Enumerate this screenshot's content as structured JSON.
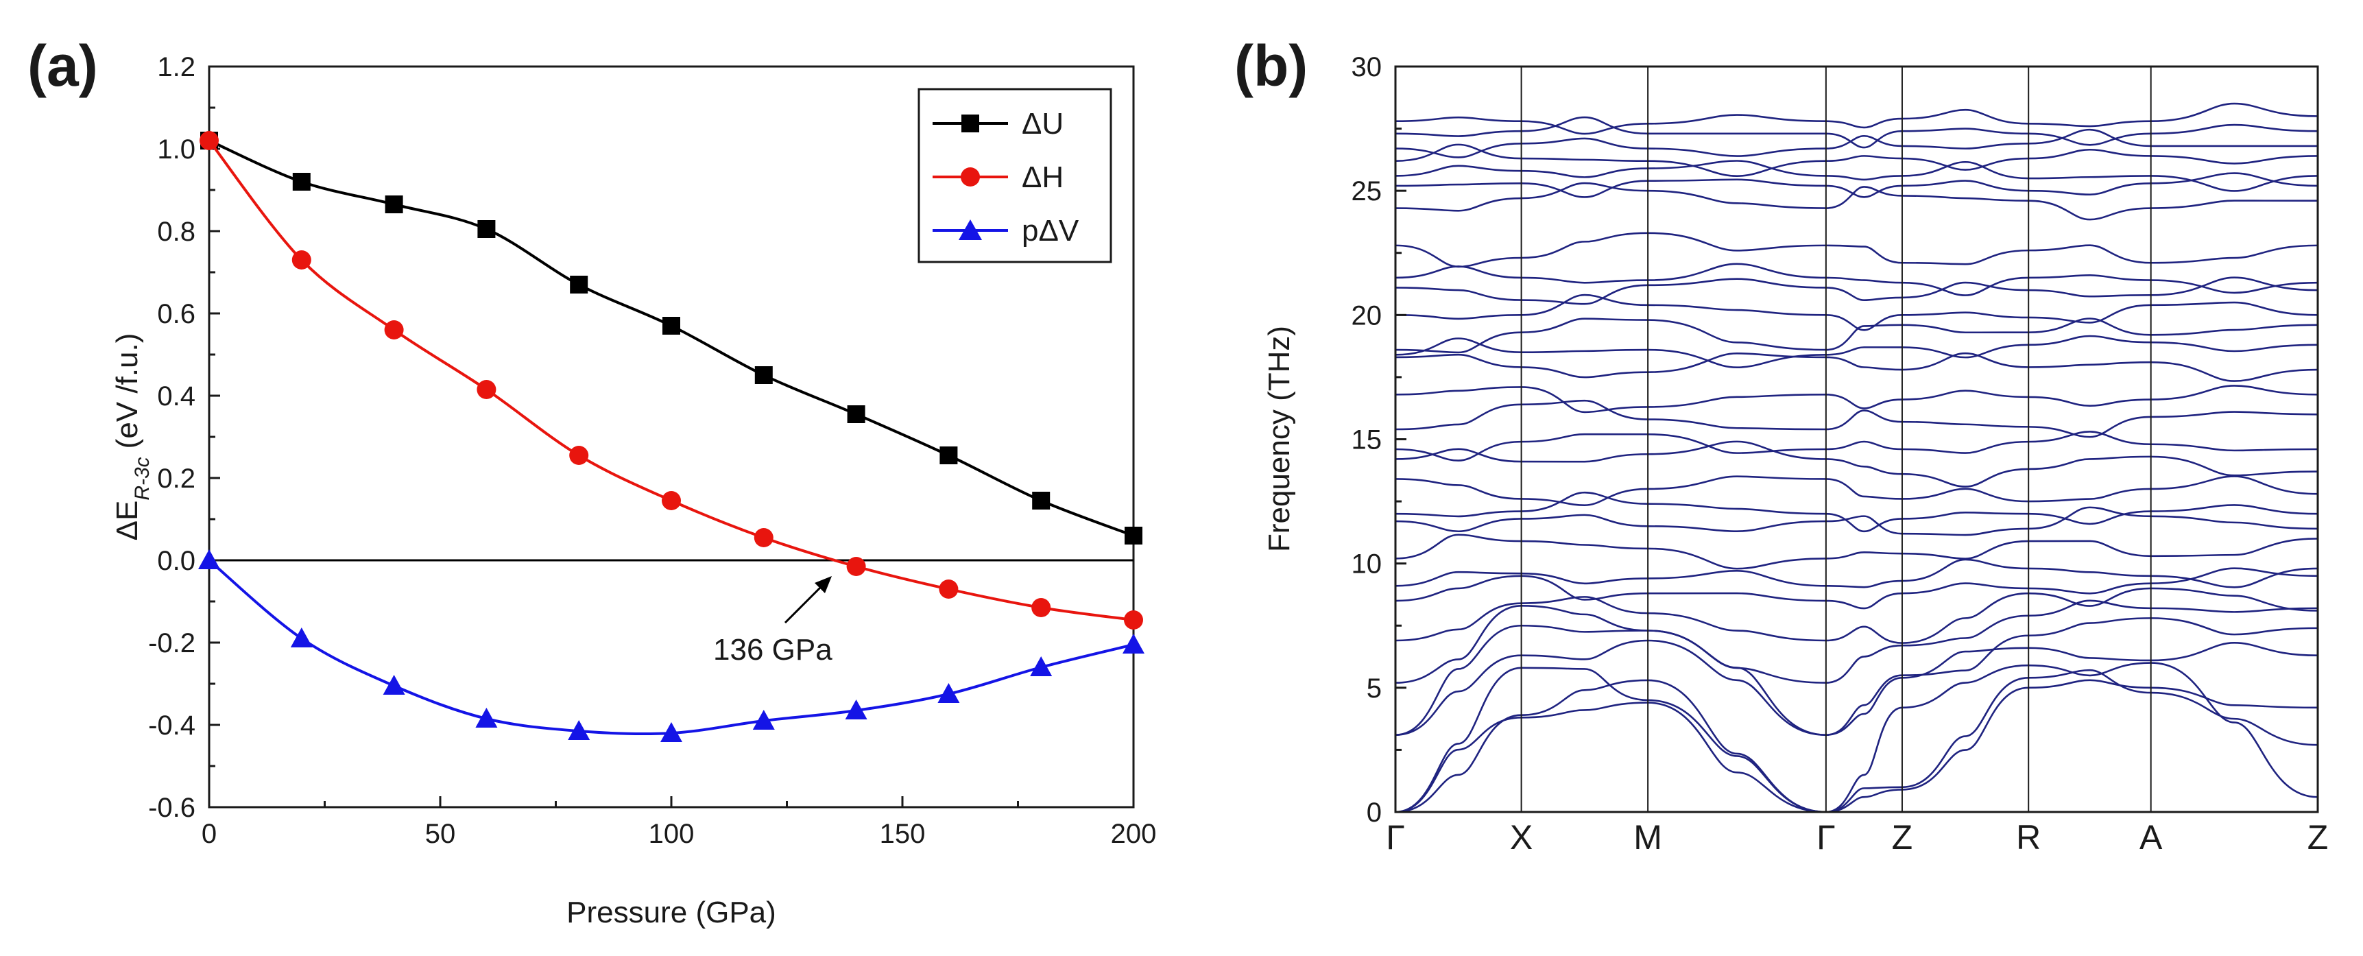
{
  "chart_data": [
    {
      "panel": "(a)",
      "type": "line",
      "xlabel": "Pressure (GPa)",
      "ylabel": {
        "main": "ΔE",
        "subscript": "R-3c",
        "units": "(eV /f.u.)"
      },
      "xlim": [
        0,
        200
      ],
      "ylim": [
        -0.6,
        1.2
      ],
      "xticks": [
        0,
        50,
        100,
        150,
        200
      ],
      "xtick_labels": [
        "0",
        "50",
        "100",
        "150",
        "200"
      ],
      "yticks": [
        -0.6,
        -0.4,
        -0.2,
        0.0,
        0.2,
        0.4,
        0.6,
        0.8,
        1.0,
        1.2
      ],
      "ytick_labels": [
        "-0.6",
        "-0.4",
        "-0.2",
        "0.0",
        "0.2",
        "0.4",
        "0.6",
        "0.8",
        "1.0",
        "1.2"
      ],
      "legend_position": "top-right",
      "series": [
        {
          "name": "ΔU",
          "color": "#000000",
          "marker": "square",
          "x": [
            0,
            20,
            40,
            60,
            80,
            100,
            120,
            140,
            160,
            180,
            200
          ],
          "y": [
            1.02,
            0.92,
            0.865,
            0.805,
            0.67,
            0.57,
            0.45,
            0.355,
            0.255,
            0.145,
            0.06
          ]
        },
        {
          "name": "ΔH",
          "color": "#e8150e",
          "marker": "circle",
          "x": [
            0,
            20,
            40,
            60,
            80,
            100,
            120,
            140,
            160,
            180,
            200
          ],
          "y": [
            1.02,
            0.73,
            0.56,
            0.415,
            0.255,
            0.145,
            0.055,
            -0.015,
            -0.07,
            -0.115,
            -0.145
          ]
        },
        {
          "name": "pΔV",
          "color": "#1414e6",
          "marker": "triangle",
          "x": [
            0,
            20,
            40,
            60,
            80,
            100,
            120,
            140,
            160,
            180,
            200
          ],
          "y": [
            0.0,
            -0.19,
            -0.305,
            -0.385,
            -0.415,
            -0.42,
            -0.39,
            -0.365,
            -0.325,
            -0.26,
            -0.205
          ]
        }
      ],
      "reference_line": {
        "y": 0.0
      },
      "annotation": {
        "text": "136 GPa",
        "x": 136,
        "y": 0.0
      }
    },
    {
      "panel": "(b)",
      "type": "line",
      "ylabel": "Frequency (THz)",
      "ylim": [
        0,
        30
      ],
      "yticks": [
        0,
        5,
        10,
        15,
        20,
        25,
        30
      ],
      "ytick_labels": [
        "0",
        "5",
        "10",
        "15",
        "20",
        "25",
        "30"
      ],
      "line_color": "#1f2380",
      "kpath": [
        "Γ",
        "X",
        "M",
        "Γ",
        "Z",
        "R",
        "A",
        "Z"
      ],
      "kpath_positions": [
        0,
        0.1365,
        0.2737,
        0.4668,
        0.5494,
        0.6864,
        0.8191,
        1.0
      ],
      "band_count": 42,
      "bands_shown": [
        [
          0,
          3.8,
          4.4,
          0,
          0.9,
          5.0,
          5.0,
          4.2
        ],
        [
          0,
          3.9,
          5.3,
          0,
          1.0,
          5.4,
          4.8,
          2.7
        ],
        [
          0,
          5.8,
          4.5,
          0,
          4.2,
          5.9,
          6.0,
          0.6
        ],
        [
          3.1,
          6.3,
          6.9,
          3.1,
          5.4,
          6.6,
          6.1,
          6.3
        ],
        [
          3.1,
          7.5,
          7.3,
          3.1,
          5.5,
          7.1,
          7.8,
          7.4
        ],
        [
          5.2,
          8.3,
          7.3,
          5.2,
          6.7,
          7.9,
          8.2,
          8.2
        ],
        [
          6.9,
          8.4,
          8.0,
          6.9,
          6.8,
          8.8,
          9.0,
          8.1
        ],
        [
          8.5,
          9.5,
          8.8,
          8.5,
          8.8,
          9.0,
          9.2,
          9.5
        ],
        [
          9.1,
          9.6,
          9.4,
          9.1,
          9.3,
          9.8,
          9.5,
          9.8
        ],
        [
          10.2,
          10.9,
          10.6,
          10.2,
          10.4,
          10.9,
          10.3,
          11.0
        ],
        [
          11.7,
          11.8,
          11.5,
          11.7,
          11.2,
          11.4,
          11.9,
          11.4
        ],
        [
          12.0,
          12.1,
          12.4,
          12.0,
          11.8,
          12.0,
          12.1,
          12.0
        ],
        [
          13.4,
          12.6,
          13.0,
          13.4,
          12.6,
          12.5,
          13.0,
          12.8
        ],
        [
          14.2,
          14.1,
          14.4,
          14.2,
          13.6,
          13.8,
          14.3,
          13.7
        ],
        [
          14.6,
          14.9,
          15.2,
          14.6,
          14.6,
          14.9,
          14.8,
          14.6
        ],
        [
          15.4,
          16.4,
          15.8,
          15.4,
          15.7,
          15.5,
          15.9,
          16.0
        ],
        [
          16.8,
          17.1,
          16.3,
          16.8,
          16.6,
          16.7,
          16.6,
          16.8
        ],
        [
          18.3,
          17.9,
          17.7,
          18.3,
          17.8,
          17.9,
          18.1,
          17.8
        ],
        [
          18.4,
          18.5,
          18.6,
          18.4,
          18.7,
          18.8,
          18.9,
          18.8
        ],
        [
          18.6,
          19.3,
          19.8,
          18.6,
          19.6,
          19.3,
          19.2,
          19.6
        ],
        [
          20.0,
          20.0,
          20.4,
          20.0,
          20.0,
          19.9,
          20.4,
          20.0
        ],
        [
          21.1,
          20.6,
          21.2,
          21.1,
          20.7,
          21.0,
          20.8,
          21.0
        ],
        [
          21.5,
          21.5,
          21.4,
          21.5,
          21.3,
          21.5,
          21.4,
          21.3
        ],
        [
          22.8,
          22.3,
          23.3,
          22.8,
          22.1,
          22.6,
          22.1,
          22.8
        ],
        [
          24.3,
          24.7,
          25.0,
          24.3,
          24.8,
          24.6,
          24.3,
          24.6
        ],
        [
          25.2,
          25.3,
          25.4,
          25.2,
          25.2,
          25.0,
          25.3,
          25.2
        ],
        [
          25.6,
          25.8,
          25.9,
          25.6,
          25.6,
          25.5,
          25.6,
          25.6
        ],
        [
          26.2,
          26.3,
          26.2,
          26.2,
          26.3,
          26.3,
          26.4,
          26.4
        ],
        [
          26.7,
          26.9,
          26.7,
          26.7,
          26.8,
          26.9,
          26.8,
          26.8
        ],
        [
          27.3,
          27.4,
          27.3,
          27.3,
          27.4,
          27.3,
          27.3,
          27.4
        ],
        [
          27.8,
          27.8,
          27.7,
          27.8,
          27.9,
          27.7,
          27.8,
          28.0
        ]
      ]
    }
  ]
}
